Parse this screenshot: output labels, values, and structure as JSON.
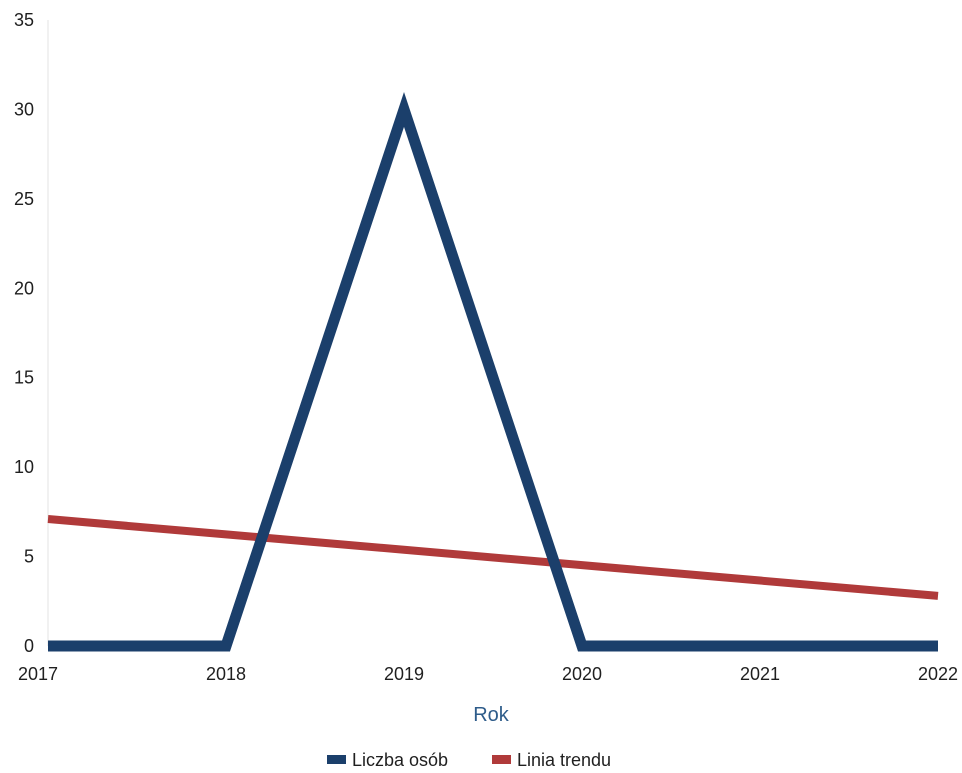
{
  "chart_data": {
    "type": "line",
    "x": [
      2017,
      2018,
      2019,
      2020,
      2021,
      2022
    ],
    "xlabel": "Rok",
    "ylabel": "",
    "xlim": [
      2017,
      2022
    ],
    "ylim": [
      0,
      35
    ],
    "yticks": [
      0,
      5,
      10,
      15,
      20,
      25,
      30,
      35
    ],
    "xticks": [
      2017,
      2018,
      2019,
      2020,
      2021,
      2022
    ],
    "grid": false,
    "legend_position": "bottom",
    "series": [
      {
        "name": "Liczba osób",
        "color": "#1b3f6b",
        "values": [
          0,
          0,
          30,
          0,
          0,
          0
        ]
      },
      {
        "name": "Linia trendu",
        "color": "#b03a3a",
        "values": [
          7.1,
          6.24,
          5.38,
          4.52,
          3.66,
          2.8
        ]
      }
    ]
  }
}
